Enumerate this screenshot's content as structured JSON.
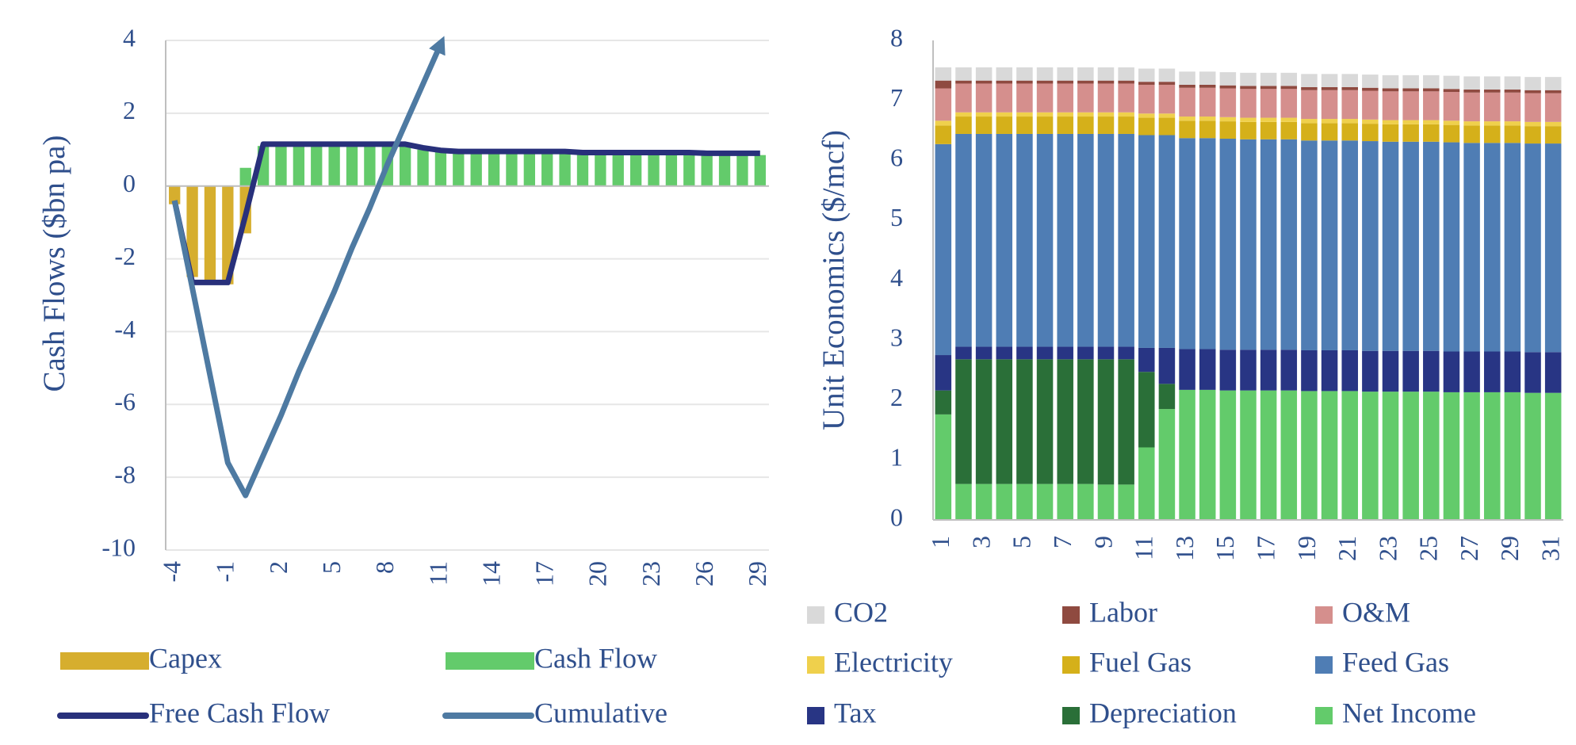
{
  "chart_data": [
    {
      "type": "bar",
      "ylabel": "Cash Flows ($bn pa)",
      "x": [
        -4,
        -3,
        -2,
        -1,
        0,
        1,
        2,
        3,
        4,
        5,
        6,
        7,
        8,
        9,
        10,
        11,
        12,
        13,
        14,
        15,
        16,
        17,
        18,
        19,
        20,
        21,
        22,
        23,
        24,
        25,
        26,
        27,
        28,
        29
      ],
      "xlim": [
        -4.5,
        29.5
      ],
      "xticks": [
        -4,
        -1,
        2,
        5,
        8,
        11,
        14,
        17,
        20,
        23,
        26,
        29
      ],
      "ylim": [
        -10,
        4
      ],
      "yticks": [
        -10,
        -8,
        -6,
        -4,
        -2,
        0,
        2,
        4
      ],
      "grid": true,
      "legend": "bottom",
      "series": [
        {
          "name": "Capex",
          "type": "bar",
          "color": "#d6ae2e",
          "values": [
            -0.5,
            -2.5,
            -2.7,
            -2.7,
            -1.3,
            null,
            null,
            null,
            null,
            null,
            null,
            null,
            null,
            null,
            null,
            null,
            null,
            null,
            null,
            null,
            null,
            null,
            null,
            null,
            null,
            null,
            null,
            null,
            null,
            null,
            null,
            null,
            null,
            null
          ]
        },
        {
          "name": "Cash Flow",
          "type": "bar",
          "color": "#63cb6b",
          "values": [
            null,
            null,
            null,
            null,
            0.5,
            1.1,
            1.1,
            1.1,
            1.1,
            1.1,
            1.1,
            1.1,
            1.1,
            1.1,
            1.0,
            0.95,
            0.9,
            0.9,
            0.9,
            0.9,
            0.9,
            0.9,
            0.9,
            0.87,
            0.87,
            0.87,
            0.87,
            0.87,
            0.87,
            0.87,
            0.85,
            0.85,
            0.85,
            0.85
          ]
        },
        {
          "name": "Free Cash Flow",
          "type": "line",
          "color": "#28307b",
          "values": [
            -0.4,
            -2.65,
            -2.65,
            -2.65,
            -0.8,
            1.15,
            1.15,
            1.15,
            1.15,
            1.15,
            1.15,
            1.15,
            1.15,
            1.15,
            1.05,
            0.98,
            0.95,
            0.95,
            0.95,
            0.95,
            0.95,
            0.95,
            0.95,
            0.92,
            0.92,
            0.92,
            0.92,
            0.92,
            0.92,
            0.92,
            0.9,
            0.9,
            0.9,
            0.9
          ]
        },
        {
          "name": "Cumulative",
          "type": "line",
          "color": "#4e7aa2",
          "arrow": true,
          "values": [
            -0.4,
            -2.8,
            -5.2,
            -7.6,
            -8.5,
            -7.4,
            -6.3,
            -5.1,
            -4.0,
            -2.9,
            -1.7,
            -0.6,
            0.6,
            1.7,
            2.8,
            3.9,
            null,
            null,
            null,
            null,
            null,
            null,
            null,
            null,
            null,
            null,
            null,
            null,
            null,
            null,
            null,
            null,
            null,
            null
          ]
        }
      ]
    },
    {
      "type": "stacked-bar",
      "ylabel": "Unit Economics ($/mcf)",
      "x": [
        1,
        2,
        3,
        4,
        5,
        6,
        7,
        8,
        9,
        10,
        11,
        12,
        13,
        14,
        15,
        16,
        17,
        18,
        19,
        20,
        21,
        22,
        23,
        24,
        25,
        26,
        27,
        28,
        29,
        30,
        31
      ],
      "xlim": [
        0.5,
        31.5
      ],
      "xticks": [
        1,
        3,
        5,
        7,
        9,
        11,
        13,
        15,
        17,
        19,
        21,
        23,
        25,
        27,
        29,
        31
      ],
      "ylim": [
        0,
        8
      ],
      "yticks": [
        0,
        1,
        2,
        3,
        4,
        5,
        6,
        7,
        8
      ],
      "grid": false,
      "legend": "bottom",
      "stack_order": "reverse",
      "series": [
        {
          "name": "CO2",
          "color": "#d9d9d9",
          "values": [
            0.22,
            0.22,
            0.22,
            0.22,
            0.22,
            0.22,
            0.22,
            0.22,
            0.22,
            0.22,
            0.22,
            0.22,
            0.22,
            0.22,
            0.22,
            0.22,
            0.22,
            0.22,
            0.22,
            0.22,
            0.22,
            0.22,
            0.22,
            0.22,
            0.22,
            0.22,
            0.22,
            0.22,
            0.22,
            0.22,
            0.22
          ]
        },
        {
          "name": "Labor",
          "color": "#8f4a40",
          "values": [
            0.13,
            0.05,
            0.05,
            0.05,
            0.05,
            0.05,
            0.05,
            0.05,
            0.05,
            0.05,
            0.05,
            0.05,
            0.05,
            0.05,
            0.05,
            0.05,
            0.05,
            0.05,
            0.05,
            0.05,
            0.05,
            0.05,
            0.05,
            0.05,
            0.05,
            0.05,
            0.05,
            0.05,
            0.05,
            0.05,
            0.05
          ]
        },
        {
          "name": "O&M",
          "color": "#d58f8d",
          "values": [
            0.54,
            0.48,
            0.48,
            0.48,
            0.48,
            0.48,
            0.48,
            0.48,
            0.48,
            0.48,
            0.48,
            0.48,
            0.48,
            0.48,
            0.48,
            0.48,
            0.48,
            0.48,
            0.48,
            0.48,
            0.48,
            0.48,
            0.48,
            0.48,
            0.48,
            0.48,
            0.48,
            0.48,
            0.48,
            0.48,
            0.48
          ]
        },
        {
          "name": "Electricity",
          "color": "#efd04c",
          "values": [
            0.08,
            0.07,
            0.07,
            0.07,
            0.07,
            0.07,
            0.07,
            0.07,
            0.07,
            0.07,
            0.07,
            0.07,
            0.07,
            0.07,
            0.07,
            0.07,
            0.07,
            0.07,
            0.07,
            0.07,
            0.07,
            0.07,
            0.07,
            0.07,
            0.07,
            0.07,
            0.07,
            0.07,
            0.07,
            0.07,
            0.07
          ]
        },
        {
          "name": "Fuel Gas",
          "color": "#d5b01a",
          "values": [
            0.31,
            0.29,
            0.29,
            0.29,
            0.29,
            0.29,
            0.29,
            0.29,
            0.29,
            0.29,
            0.29,
            0.29,
            0.29,
            0.29,
            0.29,
            0.29,
            0.29,
            0.29,
            0.29,
            0.29,
            0.29,
            0.29,
            0.29,
            0.29,
            0.29,
            0.29,
            0.29,
            0.29,
            0.29,
            0.29,
            0.29
          ]
        },
        {
          "name": "Feed Gas",
          "color": "#4f7db4",
          "values": [
            3.52,
            3.55,
            3.55,
            3.55,
            3.55,
            3.55,
            3.55,
            3.55,
            3.55,
            3.55,
            3.55,
            3.55,
            3.52,
            3.52,
            3.52,
            3.51,
            3.51,
            3.51,
            3.5,
            3.5,
            3.5,
            3.5,
            3.49,
            3.49,
            3.49,
            3.49,
            3.48,
            3.48,
            3.48,
            3.48,
            3.48
          ]
        },
        {
          "name": "Tax",
          "color": "#283584",
          "values": [
            0.59,
            0.21,
            0.21,
            0.21,
            0.21,
            0.21,
            0.21,
            0.21,
            0.21,
            0.21,
            0.4,
            0.6,
            0.68,
            0.68,
            0.68,
            0.68,
            0.68,
            0.68,
            0.68,
            0.68,
            0.68,
            0.68,
            0.68,
            0.68,
            0.68,
            0.68,
            0.68,
            0.68,
            0.68,
            0.68,
            0.68
          ]
        },
        {
          "name": "Depreciation",
          "color": "#2a6f38",
          "values": [
            0.4,
            2.08,
            2.08,
            2.08,
            2.08,
            2.08,
            2.08,
            2.08,
            2.09,
            2.09,
            1.26,
            0.42,
            0,
            0,
            0,
            0,
            0,
            0,
            0,
            0,
            0,
            0,
            0,
            0,
            0,
            0,
            0,
            0,
            0,
            0,
            0
          ]
        },
        {
          "name": "Net Income",
          "color": "#63cb6b",
          "values": [
            1.76,
            0.6,
            0.6,
            0.6,
            0.6,
            0.6,
            0.6,
            0.6,
            0.59,
            0.59,
            1.21,
            1.85,
            2.17,
            2.17,
            2.16,
            2.16,
            2.16,
            2.16,
            2.15,
            2.15,
            2.15,
            2.14,
            2.14,
            2.14,
            2.14,
            2.13,
            2.13,
            2.13,
            2.13,
            2.12,
            2.12
          ]
        }
      ]
    }
  ]
}
